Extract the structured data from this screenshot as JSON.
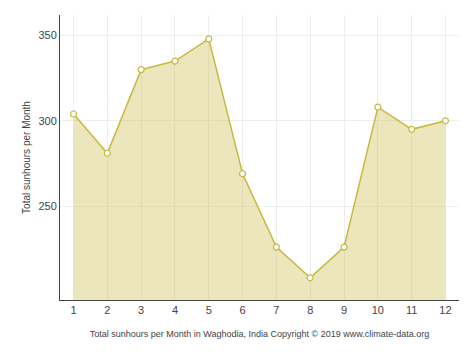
{
  "chart_data": {
    "type": "area",
    "x": [
      1,
      2,
      3,
      4,
      5,
      6,
      7,
      8,
      9,
      10,
      11,
      12
    ],
    "values": [
      304,
      281,
      330,
      335,
      348,
      269,
      226,
      208,
      226,
      308,
      295,
      300
    ],
    "color": "#C8B840",
    "marker": "circle",
    "xlabel": "Total sunhours per Month in Waghodia, India Copyright © 2019 www.climate-data.org",
    "ylabel": "Total sunhours per Month",
    "xlim": [
      0.6,
      12.4
    ],
    "xticks": [
      1,
      2,
      3,
      4,
      5,
      6,
      7,
      8,
      9,
      10,
      11,
      12
    ],
    "ylim": [
      195,
      362
    ],
    "yticks": [
      250,
      300,
      350
    ],
    "grid": true
  }
}
